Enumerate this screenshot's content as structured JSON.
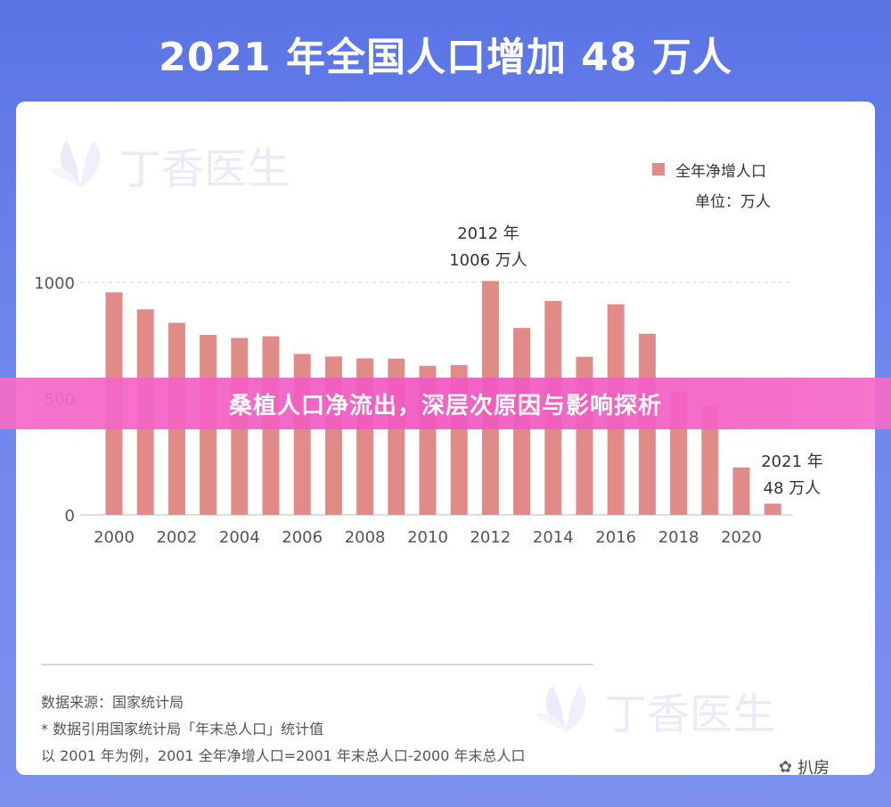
{
  "title": "2021 年全国人口增加 48 万人",
  "watermark_text": "丁香医生",
  "banner_text": "桑植人口净流出，深层次原因与影响探析",
  "legend": {
    "series": "全年净增人口",
    "unit": "单位：万人"
  },
  "callouts": {
    "c2012_line1": "2012 年",
    "c2012_line2": "1006 万人",
    "c2021_line1": "2021 年",
    "c2021_line2": "48 万人"
  },
  "notes": [
    "数据来源：国家统计局",
    "* 数据引用国家统计局「年末总人口」统计值",
    "以 2001 年为例，2001 全年净增人口=2001 年末总人口-2000 年末总人口"
  ],
  "corner": {
    "icon": "wechat-icon",
    "text": "扒房"
  },
  "colors": {
    "bar": "#e08b88",
    "background": "#6b80ea",
    "banner": "#f158c1"
  },
  "chart_data": {
    "type": "bar",
    "categories": [
      "2000",
      "2001",
      "2002",
      "2003",
      "2004",
      "2005",
      "2006",
      "2007",
      "2008",
      "2009",
      "2010",
      "2011",
      "2012",
      "2013",
      "2014",
      "2015",
      "2016",
      "2017",
      "2018",
      "2019",
      "2020",
      "2021"
    ],
    "series": [
      {
        "name": "全年净增人口",
        "values": [
          957,
          884,
          826,
          774,
          761,
          768,
          692,
          681,
          673,
          672,
          641,
          644,
          1006,
          804,
          920,
          680,
          906,
          779,
          530,
          467,
          204,
          48
        ]
      }
    ],
    "x_tick_labels": [
      "2000",
      "2002",
      "2004",
      "2006",
      "2008",
      "2010",
      "2012",
      "2014",
      "2016",
      "2018",
      "2020"
    ],
    "y_ticks": [
      0,
      500,
      1000
    ],
    "ylim": [
      0,
      1000
    ],
    "grid": "dashed line at 1000"
  }
}
